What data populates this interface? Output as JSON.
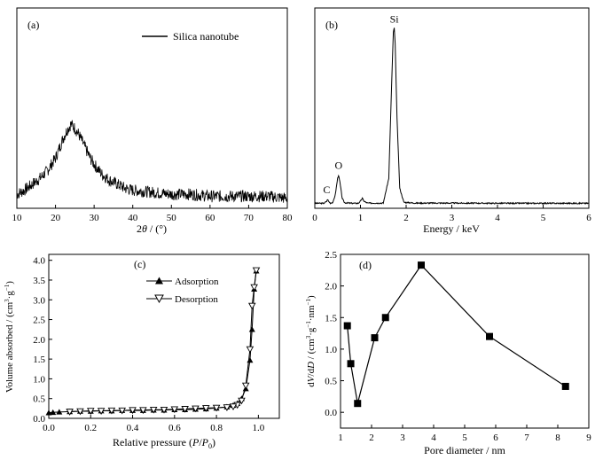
{
  "chart_data": [
    {
      "id": "a",
      "panel_label": "(a)",
      "type": "line",
      "xlabel_pre": "2",
      "xlabel_var": "θ",
      "xlabel_post": " / (°)",
      "ylabel": "",
      "xlim": [
        10,
        80
      ],
      "ylim": [
        0,
        100
      ],
      "xticks": [
        10,
        20,
        30,
        40,
        50,
        60,
        70,
        80
      ],
      "yticks": [],
      "legend_placement": "top-center",
      "series": [
        {
          "name": "Silica nanotube",
          "noise": 3,
          "x": [
            10,
            12,
            14,
            16,
            18,
            20,
            21,
            22,
            23,
            24,
            25,
            26,
            27,
            28,
            29,
            30,
            32,
            34,
            36,
            38,
            40,
            45,
            50,
            55,
            60,
            65,
            70,
            75,
            80
          ],
          "y": [
            7,
            9,
            12,
            15,
            19,
            25,
            30,
            35,
            39,
            42,
            40,
            37,
            33,
            29,
            25,
            22,
            17,
            14,
            12,
            10,
            9,
            8,
            7,
            7,
            6,
            6,
            6,
            6,
            5
          ]
        }
      ]
    },
    {
      "id": "b",
      "panel_label": "(b)",
      "type": "line",
      "xlabel": "Energy / keV",
      "ylabel": "",
      "xlim": [
        0,
        6
      ],
      "ylim": [
        0,
        100
      ],
      "xticks": [
        0,
        1,
        2,
        3,
        4,
        5,
        6
      ],
      "yticks": [],
      "series": [
        {
          "name": "",
          "noise": 0.3,
          "x": [
            0,
            0.2,
            0.26,
            0.28,
            0.3,
            0.34,
            0.4,
            0.45,
            0.5,
            0.52,
            0.55,
            0.6,
            0.65,
            0.8,
            0.95,
            1.0,
            1.04,
            1.08,
            1.15,
            1.5,
            1.62,
            1.68,
            1.72,
            1.74,
            1.76,
            1.8,
            1.86,
            1.95,
            2.2,
            3,
            4,
            5,
            6
          ],
          "y": [
            2.5,
            2.5,
            3.5,
            4.5,
            3.5,
            2.6,
            3,
            7,
            15,
            16.5,
            13,
            5,
            2.8,
            2.5,
            2.5,
            3.5,
            5,
            3.5,
            2.6,
            2.6,
            15,
            60,
            88,
            90,
            82,
            45,
            10,
            3,
            2.6,
            2.6,
            2.5,
            2.5,
            2.5
          ]
        }
      ],
      "annotations": [
        {
          "text": "C",
          "x": 0.28,
          "y": 4.5
        },
        {
          "text": "O",
          "x": 0.52,
          "y": 16.5
        },
        {
          "text": "Si",
          "x": 1.74,
          "y": 90
        }
      ]
    },
    {
      "id": "c",
      "panel_label": "(c)",
      "type": "line",
      "xlabel_pre": "Relative pressure (",
      "xlabel_var": "P",
      "xlabel_mid": "/",
      "xlabel_var2": "P",
      "xlabel_sub": "0",
      "xlabel_post": ")",
      "ylabel_main": "Volume absorbed / (cm",
      "ylabel_sup1": "3",
      "ylabel_mid": "·g",
      "ylabel_sup2": "−1",
      "ylabel_end": ")",
      "xlim": [
        0,
        1.1
      ],
      "ylim": [
        0,
        4.15
      ],
      "xticks": [
        0.0,
        0.2,
        0.4,
        0.6,
        0.8,
        1.0
      ],
      "xtick_labels": [
        "0.0",
        "0.2",
        "0.4",
        "0.6",
        "0.8",
        "1.0"
      ],
      "yticks": [
        0.0,
        0.5,
        1.0,
        1.5,
        2.0,
        2.5,
        3.0,
        3.5,
        4.0
      ],
      "ytick_labels": [
        "0.0",
        "0.5",
        "1.0",
        "1.5",
        "2.0",
        "2.5",
        "3.0",
        "3.5",
        "4.0"
      ],
      "legend_placement": "upper-middle",
      "series": [
        {
          "name": "Adsorption",
          "marker": "triangle-up",
          "x": [
            0.0,
            0.02,
            0.05,
            0.1,
            0.15,
            0.2,
            0.25,
            0.3,
            0.35,
            0.4,
            0.45,
            0.5,
            0.55,
            0.6,
            0.65,
            0.7,
            0.75,
            0.8,
            0.85,
            0.88,
            0.9,
            0.92,
            0.94,
            0.96,
            0.97,
            0.98,
            0.99
          ],
          "y": [
            0.14,
            0.15,
            0.16,
            0.17,
            0.18,
            0.18,
            0.19,
            0.19,
            0.2,
            0.2,
            0.2,
            0.21,
            0.21,
            0.22,
            0.22,
            0.23,
            0.24,
            0.26,
            0.29,
            0.33,
            0.38,
            0.5,
            0.75,
            1.47,
            2.25,
            3.27,
            3.73
          ]
        },
        {
          "name": "Desorption",
          "marker": "triangle-down",
          "x": [
            0.99,
            0.98,
            0.97,
            0.96,
            0.94,
            0.92,
            0.9,
            0.88,
            0.85,
            0.8,
            0.75,
            0.7,
            0.65,
            0.6,
            0.55,
            0.5,
            0.45,
            0.4,
            0.35,
            0.3,
            0.25,
            0.2,
            0.15,
            0.1
          ],
          "y": [
            3.75,
            3.32,
            2.85,
            1.75,
            0.83,
            0.45,
            0.34,
            0.3,
            0.28,
            0.27,
            0.26,
            0.25,
            0.24,
            0.23,
            0.22,
            0.22,
            0.21,
            0.21,
            0.2,
            0.2,
            0.19,
            0.19,
            0.18,
            0.17
          ]
        }
      ]
    },
    {
      "id": "d",
      "panel_label": "(d)",
      "type": "line",
      "xlabel": "Pore diameter / nm",
      "ylabel_pre": "d",
      "ylabel_v": "V",
      "ylabel_slash": "/d",
      "ylabel_d": "D",
      "ylabel_unit": " / (cm",
      "ylabel_sup1": "3",
      "ylabel_g": "·g",
      "ylabel_sup2": "−1",
      "ylabel_nm": "·nm",
      "ylabel_sup3": "−1",
      "ylabel_end": ")",
      "xlim": [
        1,
        9
      ],
      "ylim": [
        -0.25,
        2.5
      ],
      "xticks": [
        1,
        2,
        3,
        4,
        5,
        6,
        7,
        8,
        9
      ],
      "yticks": [
        0.0,
        0.5,
        1.0,
        1.5,
        2.0,
        2.5
      ],
      "ytick_labels": [
        "0.0",
        "0.5",
        "1.0",
        "1.5",
        "2.0",
        "2.5"
      ],
      "series": [
        {
          "name": "",
          "marker": "square",
          "x": [
            1.22,
            1.33,
            1.55,
            2.1,
            2.45,
            3.6,
            5.8,
            8.25
          ],
          "y": [
            1.37,
            0.77,
            0.14,
            1.18,
            1.5,
            2.33,
            1.2,
            0.41
          ]
        }
      ]
    }
  ]
}
